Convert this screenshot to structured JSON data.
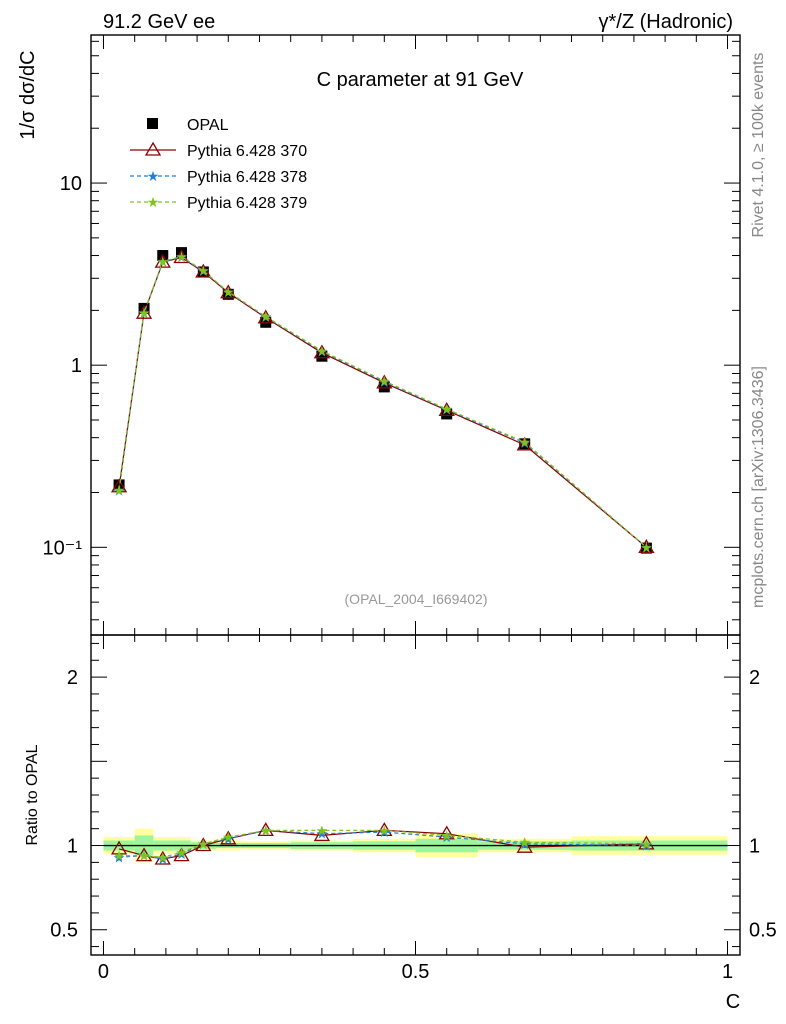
{
  "header": {
    "left": "91.2 GeV ee",
    "right": "γ*/Z (Hadronic)"
  },
  "side_labels": {
    "rivet": "Rivet 4.1.0, ≥ 100k events",
    "mcplots": "mcplots.cern.ch [arXiv:1306.3436]"
  },
  "chart_data": [
    {
      "type": "scatter",
      "scale": "log",
      "title": "C parameter at 91 GeV",
      "ylabel": "1/σ  dσ/dC",
      "annotation": "(OPAL_2004_I669402)",
      "xlim": [
        -0.02,
        1.02
      ],
      "ylim": [
        0.033,
        65
      ],
      "yticks": [
        {
          "value": 10,
          "label": "10"
        },
        {
          "value": 1,
          "label": "1"
        },
        {
          "value": 0.1,
          "label": "10⁻¹"
        }
      ],
      "x": [
        0.025,
        0.065,
        0.095,
        0.125,
        0.16,
        0.2,
        0.26,
        0.35,
        0.45,
        0.55,
        0.675,
        0.87
      ],
      "series": [
        {
          "name": "OPAL",
          "color": "#000000",
          "marker": "square",
          "line": "none",
          "values": [
            0.22,
            2.05,
            4.0,
            4.15,
            3.25,
            2.45,
            1.72,
            1.12,
            0.76,
            0.54,
            0.37,
            0.099
          ]
        },
        {
          "name": "Pythia 6.428 370",
          "color": "#8b0000",
          "marker": "triangle",
          "line": "solid",
          "values": [
            0.215,
            1.93,
            3.68,
            3.9,
            3.25,
            2.5,
            1.82,
            1.17,
            0.8,
            0.565,
            0.365,
            0.1
          ]
        },
        {
          "name": "Pythia 6.428 378",
          "color": "#1e7fdc",
          "marker": "star",
          "line": "dashed",
          "values": [
            0.205,
            1.95,
            3.7,
            3.92,
            3.28,
            2.52,
            1.84,
            1.19,
            0.81,
            0.57,
            0.375,
            0.1
          ]
        },
        {
          "name": "Pythia 6.428 379",
          "color": "#7fc31c",
          "marker": "star",
          "line": "dashed",
          "values": [
            0.207,
            1.94,
            3.72,
            3.95,
            3.3,
            2.53,
            1.85,
            1.2,
            0.82,
            0.575,
            0.378,
            0.1
          ]
        }
      ]
    },
    {
      "type": "scatter",
      "scale": "linear",
      "ylabel": "Ratio to OPAL",
      "xlabel": "C",
      "xlim": [
        -0.02,
        1.02
      ],
      "ylim": [
        0.35,
        2.25
      ],
      "xticks": [
        {
          "value": 0,
          "label": "0"
        },
        {
          "value": 0.5,
          "label": "0.5"
        },
        {
          "value": 1,
          "label": "1"
        }
      ],
      "yticks": [
        {
          "value": 2,
          "label": "2"
        },
        {
          "value": 1,
          "label": "1"
        },
        {
          "value": 0.5,
          "label": "0.5"
        }
      ],
      "bins": [
        0,
        0.05,
        0.08,
        0.11,
        0.14,
        0.18,
        0.22,
        0.3,
        0.4,
        0.5,
        0.6,
        0.75,
        1.0
      ],
      "band_inner": [
        0.03,
        0.06,
        0.03,
        0.03,
        0.02,
        0.015,
        0.015,
        0.02,
        0.025,
        0.04,
        0.025,
        0.03
      ],
      "band_outer": [
        0.05,
        0.1,
        0.05,
        0.05,
        0.03,
        0.03,
        0.025,
        0.03,
        0.04,
        0.07,
        0.04,
        0.055
      ],
      "x": [
        0.025,
        0.065,
        0.095,
        0.125,
        0.16,
        0.2,
        0.26,
        0.35,
        0.45,
        0.55,
        0.675,
        0.87
      ],
      "series": [
        {
          "name": "Pythia 6.428 370",
          "color": "#8b0000",
          "marker": "triangle",
          "line": "solid",
          "values": [
            0.98,
            0.94,
            0.92,
            0.94,
            1.0,
            1.04,
            1.09,
            1.06,
            1.09,
            1.07,
            0.99,
            1.01
          ]
        },
        {
          "name": "Pythia 6.428 378",
          "color": "#1e7fdc",
          "marker": "star",
          "line": "dashed",
          "values": [
            0.93,
            0.94,
            0.92,
            0.95,
            1.01,
            1.04,
            1.09,
            1.07,
            1.08,
            1.05,
            1.01,
            1.0
          ]
        },
        {
          "name": "Pythia 6.428 379",
          "color": "#7fc31c",
          "marker": "star",
          "line": "dashed",
          "values": [
            0.94,
            0.94,
            0.93,
            0.96,
            1.01,
            1.05,
            1.09,
            1.09,
            1.09,
            1.06,
            1.02,
            1.01
          ]
        }
      ]
    }
  ]
}
